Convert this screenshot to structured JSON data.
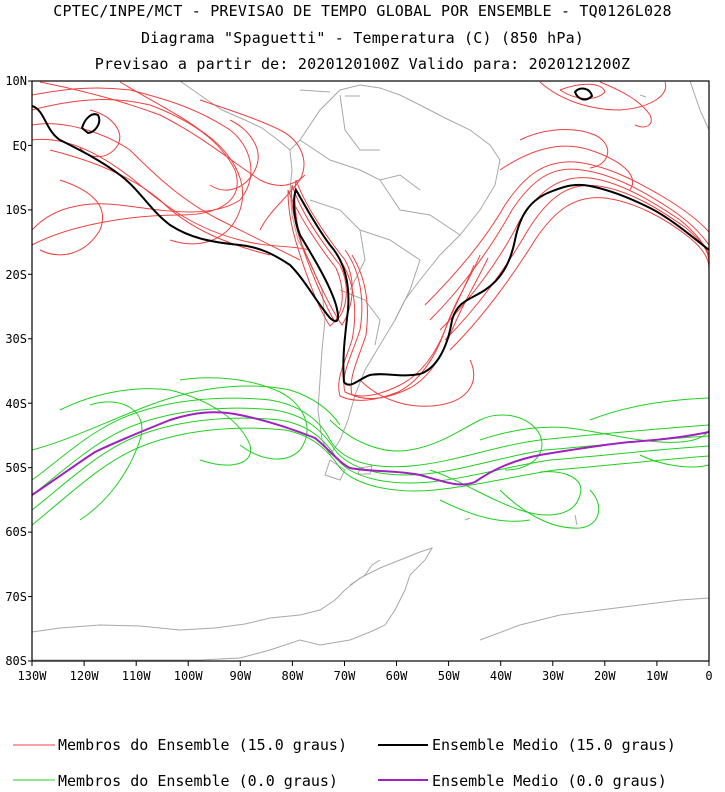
{
  "title": {
    "line1": "CPTEC/INPE/MCT - PREVISAO DE TEMPO GLOBAL POR ENSEMBLE - TQ0126L028",
    "line2": "Diagrama \"Spaguetti\" - Temperatura (C) (850 hPa)",
    "line3": "Previsao a partir de: 2020120100Z  Valido para: 2020121200Z"
  },
  "map": {
    "lat_labels": [
      "10N",
      "EQ",
      "10S",
      "20S",
      "30S",
      "40S",
      "50S",
      "60S",
      "70S",
      "80S"
    ],
    "lon_labels": [
      "130W",
      "120W",
      "110W",
      "100W",
      "90W",
      "80W",
      "70W",
      "60W",
      "50W",
      "40W",
      "30W",
      "20W",
      "10W",
      "0"
    ],
    "lat_range": [
      10,
      -80
    ],
    "lon_range": [
      -130,
      0
    ]
  },
  "legend": {
    "members_15": "Membros do Ensemble (15.0 graus)",
    "mean_15": "Ensemble Medio (15.0 graus)",
    "members_0": "Membros do Ensemble (0.0 graus)",
    "mean_0": "Ensemble Medio (0.0 graus)"
  },
  "colors": {
    "members_15": "#f04040",
    "mean_15": "#000000",
    "members_0": "#20d020",
    "mean_0": "#a020c0",
    "coast": "#a8a8a8"
  }
}
